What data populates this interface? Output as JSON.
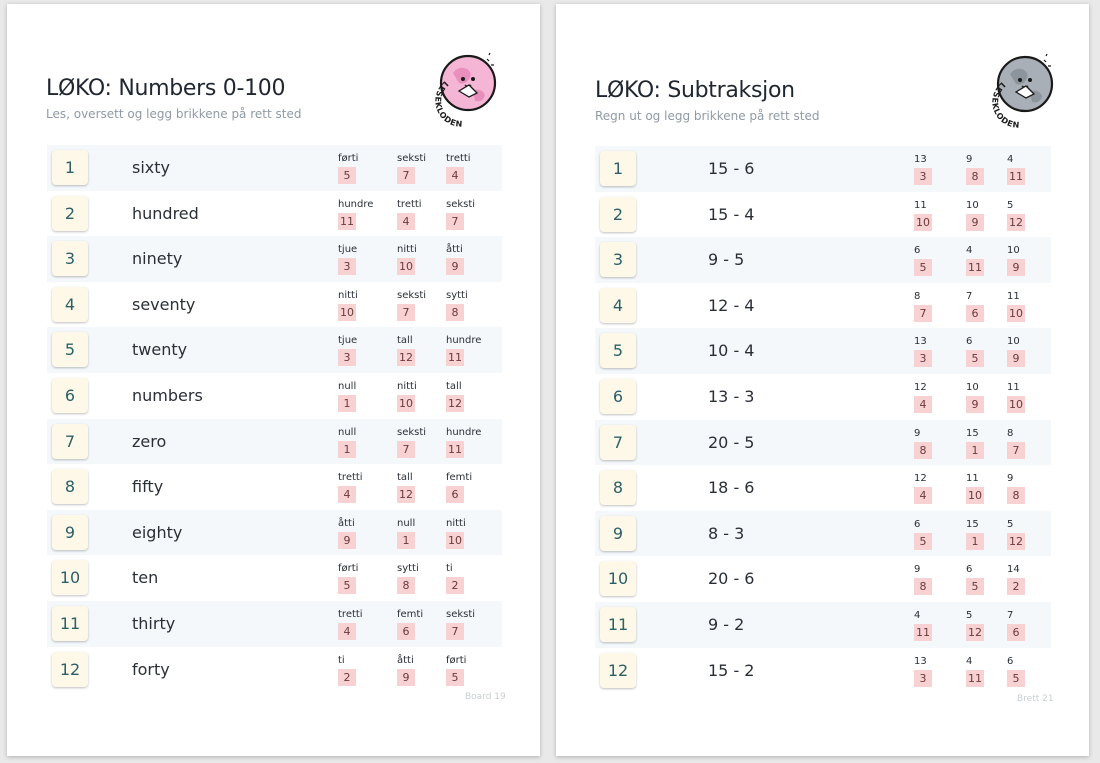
{
  "colors": {
    "number_tile_bg": "#fdf8e8",
    "number_tile_text": "#2d5f66",
    "answer_badge_bg": "#f8d2d2",
    "row_shade": "#f4f8fb",
    "logo_pink": "#f5b6d6",
    "logo_gray": "#a8afb6"
  },
  "pages": [
    {
      "title": "LØKO: Numbers 0-100",
      "subtitle": "Les, oversett og legg brikkene på rett sted",
      "logo_text": "LESEKLODEN",
      "footer": "Board 19",
      "rows": [
        {
          "n": "1",
          "word": "sixty",
          "options": [
            {
              "label": "førti",
              "value": "5"
            },
            {
              "label": "seksti",
              "value": "7"
            },
            {
              "label": "tretti",
              "value": "4"
            }
          ]
        },
        {
          "n": "2",
          "word": "hundred",
          "options": [
            {
              "label": "hundre",
              "value": "11"
            },
            {
              "label": "tretti",
              "value": "4"
            },
            {
              "label": "seksti",
              "value": "7"
            }
          ]
        },
        {
          "n": "3",
          "word": "ninety",
          "options": [
            {
              "label": "tjue",
              "value": "3"
            },
            {
              "label": "nitti",
              "value": "10"
            },
            {
              "label": "åtti",
              "value": "9"
            }
          ]
        },
        {
          "n": "4",
          "word": "seventy",
          "options": [
            {
              "label": "nitti",
              "value": "10"
            },
            {
              "label": "seksti",
              "value": "7"
            },
            {
              "label": "sytti",
              "value": "8"
            }
          ]
        },
        {
          "n": "5",
          "word": "twenty",
          "options": [
            {
              "label": "tjue",
              "value": "3"
            },
            {
              "label": "tall",
              "value": "12"
            },
            {
              "label": "hundre",
              "value": "11"
            }
          ]
        },
        {
          "n": "6",
          "word": "numbers",
          "options": [
            {
              "label": "null",
              "value": "1"
            },
            {
              "label": "nitti",
              "value": "10"
            },
            {
              "label": "tall",
              "value": "12"
            }
          ]
        },
        {
          "n": "7",
          "word": "zero",
          "options": [
            {
              "label": "null",
              "value": "1"
            },
            {
              "label": "seksti",
              "value": "7"
            },
            {
              "label": "hundre",
              "value": "11"
            }
          ]
        },
        {
          "n": "8",
          "word": "fifty",
          "options": [
            {
              "label": "tretti",
              "value": "4"
            },
            {
              "label": "tall",
              "value": "12"
            },
            {
              "label": "femti",
              "value": "6"
            }
          ]
        },
        {
          "n": "9",
          "word": "eighty",
          "options": [
            {
              "label": "åtti",
              "value": "9"
            },
            {
              "label": "null",
              "value": "1"
            },
            {
              "label": "nitti",
              "value": "10"
            }
          ]
        },
        {
          "n": "10",
          "word": "ten",
          "options": [
            {
              "label": "førti",
              "value": "5"
            },
            {
              "label": "sytti",
              "value": "8"
            },
            {
              "label": "ti",
              "value": "2"
            }
          ]
        },
        {
          "n": "11",
          "word": "thirty",
          "options": [
            {
              "label": "tretti",
              "value": "4"
            },
            {
              "label": "femti",
              "value": "6"
            },
            {
              "label": "seksti",
              "value": "7"
            }
          ]
        },
        {
          "n": "12",
          "word": "forty",
          "options": [
            {
              "label": "ti",
              "value": "2"
            },
            {
              "label": "åtti",
              "value": "9"
            },
            {
              "label": "førti",
              "value": "5"
            }
          ]
        }
      ]
    },
    {
      "title": "LØKO: Subtraksjon",
      "subtitle": "Regn ut og legg brikkene på rett sted",
      "logo_text": "LESEKLODEN",
      "footer": "Brett 21",
      "rows": [
        {
          "n": "1",
          "word": "15 - 6",
          "options": [
            {
              "label": "13",
              "value": "3"
            },
            {
              "label": "9",
              "value": "8"
            },
            {
              "label": "4",
              "value": "11"
            }
          ]
        },
        {
          "n": "2",
          "word": "15 - 4",
          "options": [
            {
              "label": "11",
              "value": "10"
            },
            {
              "label": "10",
              "value": "9"
            },
            {
              "label": "5",
              "value": "12"
            }
          ]
        },
        {
          "n": "3",
          "word": "9 - 5",
          "options": [
            {
              "label": "6",
              "value": "5"
            },
            {
              "label": "4",
              "value": "11"
            },
            {
              "label": "10",
              "value": "9"
            }
          ]
        },
        {
          "n": "4",
          "word": "12 - 4",
          "options": [
            {
              "label": "8",
              "value": "7"
            },
            {
              "label": "7",
              "value": "6"
            },
            {
              "label": "11",
              "value": "10"
            }
          ]
        },
        {
          "n": "5",
          "word": "10 - 4",
          "options": [
            {
              "label": "13",
              "value": "3"
            },
            {
              "label": "6",
              "value": "5"
            },
            {
              "label": "10",
              "value": "9"
            }
          ]
        },
        {
          "n": "6",
          "word": "13 - 3",
          "options": [
            {
              "label": "12",
              "value": "4"
            },
            {
              "label": "10",
              "value": "9"
            },
            {
              "label": "11",
              "value": "10"
            }
          ]
        },
        {
          "n": "7",
          "word": "20 - 5",
          "options": [
            {
              "label": "9",
              "value": "8"
            },
            {
              "label": "15",
              "value": "1"
            },
            {
              "label": "8",
              "value": "7"
            }
          ]
        },
        {
          "n": "8",
          "word": "18 - 6",
          "options": [
            {
              "label": "12",
              "value": "4"
            },
            {
              "label": "11",
              "value": "10"
            },
            {
              "label": "9",
              "value": "8"
            }
          ]
        },
        {
          "n": "9",
          "word": "8 - 3",
          "options": [
            {
              "label": "6",
              "value": "5"
            },
            {
              "label": "15",
              "value": "1"
            },
            {
              "label": "5",
              "value": "12"
            }
          ]
        },
        {
          "n": "10",
          "word": "20 - 6",
          "options": [
            {
              "label": "9",
              "value": "8"
            },
            {
              "label": "6",
              "value": "5"
            },
            {
              "label": "14",
              "value": "2"
            }
          ]
        },
        {
          "n": "11",
          "word": "9 - 2",
          "options": [
            {
              "label": "4",
              "value": "11"
            },
            {
              "label": "5",
              "value": "12"
            },
            {
              "label": "7",
              "value": "6"
            }
          ]
        },
        {
          "n": "12",
          "word": "15 - 2",
          "options": [
            {
              "label": "13",
              "value": "3"
            },
            {
              "label": "4",
              "value": "11"
            },
            {
              "label": "6",
              "value": "5"
            }
          ]
        }
      ]
    }
  ]
}
